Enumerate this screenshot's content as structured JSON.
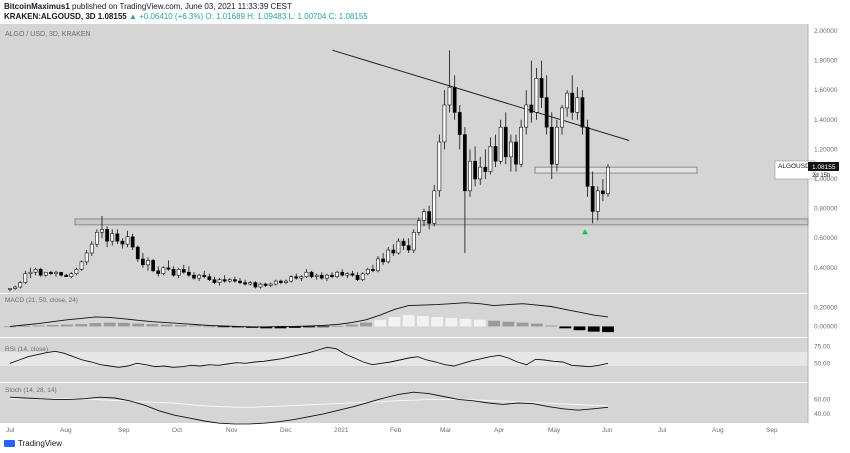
{
  "header": {
    "author": "BitcoinMaximus1",
    "published_text": "published on TradingView.com, June 03, 2021 11:33:39 CEST",
    "symbol_line": "KRAKEN:ALGOUSD, 3D",
    "last": "1.08155",
    "change": "▲ +0.06410 (+6.3%)",
    "ohlc": "O: 1.01689  H: 1.09483  L: 1.00704  C: 1.08155"
  },
  "footer": {
    "brand": "TradingView"
  },
  "colors": {
    "background": "#ffffff",
    "pane": "#d5d5d5",
    "candle_up": "#ffffff",
    "candle_down": "#000000",
    "ohlc_text": "#26a69a",
    "arrow": "#00c853",
    "rsi_band": "#e6e6e6"
  },
  "chart_data": {
    "type": "candlestick",
    "title": "ALGO / USD, 3D, KRAKEN",
    "price_label": {
      "symbol": "ALGOUSD",
      "value": "1.08155",
      "countdown": "2d 15h"
    },
    "x_ticks": [
      "Jul",
      "Aug",
      "Sep",
      "Oct",
      "Nov",
      "Dec",
      "2021",
      "Feb",
      "Mar",
      "Apr",
      "May",
      "Jun",
      "Jul",
      "Aug",
      "Sep"
    ],
    "y_ticks": [
      "2.00000",
      "1.80000",
      "1.60000",
      "1.40000",
      "1.20000",
      "1.00000",
      "0.80000",
      "0.60000",
      "0.40000"
    ],
    "ylim": [
      0.25,
      2.02
    ],
    "candles": [
      [
        0.26,
        0.26,
        0.24,
        0.26
      ],
      [
        0.26,
        0.28,
        0.25,
        0.27
      ],
      [
        0.27,
        0.31,
        0.26,
        0.3
      ],
      [
        0.3,
        0.38,
        0.29,
        0.36
      ],
      [
        0.36,
        0.4,
        0.33,
        0.37
      ],
      [
        0.37,
        0.4,
        0.35,
        0.39
      ],
      [
        0.39,
        0.4,
        0.34,
        0.35
      ],
      [
        0.35,
        0.37,
        0.34,
        0.37
      ],
      [
        0.37,
        0.38,
        0.35,
        0.36
      ],
      [
        0.36,
        0.38,
        0.34,
        0.37
      ],
      [
        0.37,
        0.37,
        0.34,
        0.35
      ],
      [
        0.35,
        0.36,
        0.34,
        0.34
      ],
      [
        0.34,
        0.37,
        0.33,
        0.36
      ],
      [
        0.36,
        0.4,
        0.35,
        0.39
      ],
      [
        0.39,
        0.45,
        0.38,
        0.44
      ],
      [
        0.44,
        0.52,
        0.42,
        0.5
      ],
      [
        0.5,
        0.58,
        0.48,
        0.56
      ],
      [
        0.56,
        0.66,
        0.54,
        0.64
      ],
      [
        0.64,
        0.75,
        0.6,
        0.66
      ],
      [
        0.66,
        0.68,
        0.54,
        0.58
      ],
      [
        0.58,
        0.66,
        0.55,
        0.63
      ],
      [
        0.63,
        0.66,
        0.56,
        0.58
      ],
      [
        0.58,
        0.6,
        0.53,
        0.56
      ],
      [
        0.56,
        0.65,
        0.54,
        0.61
      ],
      [
        0.61,
        0.63,
        0.52,
        0.54
      ],
      [
        0.54,
        0.55,
        0.44,
        0.46
      ],
      [
        0.46,
        0.5,
        0.4,
        0.42
      ],
      [
        0.42,
        0.47,
        0.38,
        0.45
      ],
      [
        0.45,
        0.46,
        0.37,
        0.38
      ],
      [
        0.38,
        0.41,
        0.34,
        0.36
      ],
      [
        0.36,
        0.41,
        0.35,
        0.4
      ],
      [
        0.4,
        0.45,
        0.38,
        0.39
      ],
      [
        0.39,
        0.41,
        0.34,
        0.35
      ],
      [
        0.35,
        0.4,
        0.33,
        0.39
      ],
      [
        0.39,
        0.42,
        0.36,
        0.37
      ],
      [
        0.37,
        0.41,
        0.34,
        0.35
      ],
      [
        0.35,
        0.37,
        0.32,
        0.33
      ],
      [
        0.33,
        0.36,
        0.31,
        0.35
      ],
      [
        0.35,
        0.38,
        0.33,
        0.34
      ],
      [
        0.34,
        0.36,
        0.31,
        0.32
      ],
      [
        0.32,
        0.34,
        0.29,
        0.3
      ],
      [
        0.3,
        0.33,
        0.28,
        0.32
      ],
      [
        0.32,
        0.35,
        0.3,
        0.31
      ],
      [
        0.31,
        0.33,
        0.3,
        0.32
      ],
      [
        0.32,
        0.34,
        0.3,
        0.31
      ],
      [
        0.31,
        0.33,
        0.29,
        0.3
      ],
      [
        0.3,
        0.32,
        0.28,
        0.29
      ],
      [
        0.29,
        0.31,
        0.28,
        0.3
      ],
      [
        0.3,
        0.31,
        0.26,
        0.27
      ],
      [
        0.27,
        0.3,
        0.26,
        0.29
      ],
      [
        0.29,
        0.3,
        0.27,
        0.28
      ],
      [
        0.28,
        0.3,
        0.27,
        0.29
      ],
      [
        0.29,
        0.32,
        0.28,
        0.31
      ],
      [
        0.31,
        0.32,
        0.29,
        0.3
      ],
      [
        0.3,
        0.32,
        0.29,
        0.31
      ],
      [
        0.31,
        0.35,
        0.3,
        0.34
      ],
      [
        0.34,
        0.36,
        0.32,
        0.33
      ],
      [
        0.33,
        0.35,
        0.31,
        0.34
      ],
      [
        0.34,
        0.39,
        0.33,
        0.37
      ],
      [
        0.37,
        0.38,
        0.33,
        0.34
      ],
      [
        0.34,
        0.36,
        0.32,
        0.35
      ],
      [
        0.35,
        0.37,
        0.32,
        0.33
      ],
      [
        0.33,
        0.36,
        0.31,
        0.35
      ],
      [
        0.35,
        0.37,
        0.33,
        0.34
      ],
      [
        0.34,
        0.38,
        0.33,
        0.37
      ],
      [
        0.37,
        0.39,
        0.34,
        0.35
      ],
      [
        0.35,
        0.37,
        0.33,
        0.36
      ],
      [
        0.36,
        0.38,
        0.34,
        0.35
      ],
      [
        0.35,
        0.37,
        0.31,
        0.32
      ],
      [
        0.32,
        0.37,
        0.31,
        0.36
      ],
      [
        0.36,
        0.4,
        0.35,
        0.39
      ],
      [
        0.39,
        0.42,
        0.37,
        0.38
      ],
      [
        0.38,
        0.48,
        0.37,
        0.46
      ],
      [
        0.46,
        0.5,
        0.42,
        0.44
      ],
      [
        0.44,
        0.54,
        0.43,
        0.52
      ],
      [
        0.52,
        0.56,
        0.48,
        0.5
      ],
      [
        0.5,
        0.6,
        0.49,
        0.58
      ],
      [
        0.58,
        0.6,
        0.52,
        0.55
      ],
      [
        0.55,
        0.6,
        0.5,
        0.52
      ],
      [
        0.52,
        0.66,
        0.5,
        0.64
      ],
      [
        0.64,
        0.74,
        0.62,
        0.72
      ],
      [
        0.72,
        0.8,
        0.68,
        0.78
      ],
      [
        0.78,
        0.82,
        0.66,
        0.7
      ],
      [
        0.7,
        0.96,
        0.68,
        0.92
      ],
      [
        0.92,
        1.3,
        0.88,
        1.25
      ],
      [
        1.25,
        1.6,
        1.2,
        1.5
      ],
      [
        1.5,
        1.87,
        1.45,
        1.62
      ],
      [
        1.62,
        1.7,
        1.4,
        1.45
      ],
      [
        1.45,
        1.5,
        1.2,
        1.3
      ],
      [
        1.3,
        1.35,
        0.5,
        0.92
      ],
      [
        0.92,
        1.2,
        0.88,
        1.12
      ],
      [
        1.12,
        1.22,
        0.95,
        1.0
      ],
      [
        1.0,
        1.15,
        0.96,
        1.08
      ],
      [
        1.08,
        1.2,
        1.0,
        1.05
      ],
      [
        1.05,
        1.28,
        1.03,
        1.22
      ],
      [
        1.22,
        1.3,
        1.08,
        1.12
      ],
      [
        1.12,
        1.4,
        1.1,
        1.35
      ],
      [
        1.35,
        1.45,
        1.1,
        1.15
      ],
      [
        1.15,
        1.3,
        1.05,
        1.25
      ],
      [
        1.25,
        1.3,
        1.05,
        1.1
      ],
      [
        1.1,
        1.4,
        1.08,
        1.35
      ],
      [
        1.35,
        1.6,
        1.3,
        1.5
      ],
      [
        1.5,
        1.8,
        1.38,
        1.45
      ],
      [
        1.45,
        1.75,
        1.4,
        1.68
      ],
      [
        1.68,
        1.8,
        1.48,
        1.55
      ],
      [
        1.55,
        1.7,
        1.3,
        1.35
      ],
      [
        1.35,
        1.45,
        1.0,
        1.1
      ],
      [
        1.1,
        1.4,
        1.05,
        1.35
      ],
      [
        1.35,
        1.5,
        1.3,
        1.48
      ],
      [
        1.48,
        1.6,
        1.42,
        1.58
      ],
      [
        1.58,
        1.7,
        1.4,
        1.45
      ],
      [
        1.45,
        1.62,
        1.4,
        1.55
      ],
      [
        1.55,
        1.6,
        1.3,
        1.35
      ],
      [
        1.35,
        1.4,
        0.88,
        0.95
      ],
      [
        0.95,
        1.05,
        0.7,
        0.78
      ],
      [
        0.78,
        0.95,
        0.72,
        0.92
      ],
      [
        0.92,
        1.0,
        0.85,
        0.9
      ],
      [
        0.9,
        1.1,
        0.88,
        1.08
      ]
    ],
    "resistance_line": {
      "start": [
        0.53,
        1.87
      ],
      "end": [
        0.885,
        1.26
      ]
    },
    "support_zone": [
      0.69,
      0.73
    ],
    "resistance_zone": [
      1.04,
      1.08
    ],
    "macd": {
      "label": "MACD (21, 50, close, 24)",
      "y_ticks": [
        "0.20000",
        "0.00000"
      ],
      "ylim": [
        -0.08,
        0.3
      ],
      "line": [
        0.0,
        0.015,
        0.03,
        0.05,
        0.07,
        0.085,
        0.1,
        0.095,
        0.08,
        0.065,
        0.05,
        0.04,
        0.03,
        0.02,
        0.01,
        0.005,
        0.0,
        -0.005,
        -0.005,
        0.0,
        0.0,
        0.005,
        0.01,
        0.02,
        0.04,
        0.07,
        0.12,
        0.18,
        0.22,
        0.225,
        0.23,
        0.24,
        0.25,
        0.24,
        0.22,
        0.23,
        0.24,
        0.225,
        0.21,
        0.18,
        0.15,
        0.12,
        0.1
      ],
      "histogram": [
        0.0,
        0.005,
        0.01,
        0.015,
        0.02,
        0.025,
        0.035,
        0.04,
        0.038,
        0.03,
        0.025,
        0.02,
        0.015,
        0.01,
        0.0,
        -0.005,
        -0.01,
        -0.015,
        -0.02,
        -0.02,
        -0.015,
        -0.01,
        -0.005,
        0.005,
        0.02,
        0.04,
        0.07,
        0.1,
        0.12,
        0.11,
        0.1,
        0.09,
        0.08,
        0.07,
        0.06,
        0.05,
        0.04,
        0.03,
        0.01,
        -0.02,
        -0.04,
        -0.055,
        -0.06
      ]
    },
    "rsi": {
      "label": "RSI (14, close)",
      "y_ticks": [
        "75.00",
        "50.00"
      ],
      "ylim": [
        25,
        85
      ],
      "band": [
        50,
        70
      ],
      "values": [
        50,
        55,
        60,
        63,
        66,
        68,
        65,
        60,
        55,
        52,
        48,
        46,
        44,
        46,
        50,
        48,
        45,
        46,
        44,
        45,
        47,
        46,
        48,
        47,
        49,
        51,
        50,
        52,
        53,
        55,
        57,
        60,
        63,
        66,
        70,
        74,
        72,
        64,
        58,
        52,
        48,
        50,
        52,
        55,
        58,
        60,
        55,
        52,
        48,
        46,
        50,
        54,
        57,
        60,
        62,
        58,
        52,
        48,
        56,
        55,
        53,
        52,
        47,
        46,
        45,
        47,
        50
      ]
    },
    "stoch": {
      "label": "Stoch (14, 28, 14)",
      "y_ticks": [
        "60.00",
        "40.00"
      ],
      "ylim": [
        30,
        80
      ],
      "k": [
        63,
        62,
        61,
        60,
        60,
        61,
        63,
        62,
        58,
        52,
        44,
        38,
        34,
        30,
        27,
        26,
        26,
        27,
        29,
        32,
        36,
        40,
        45,
        50,
        56,
        62,
        67,
        70,
        68,
        64,
        60,
        58,
        55,
        53,
        55,
        54,
        50,
        47,
        45,
        47,
        49
      ],
      "d": [
        61,
        61,
        61,
        61,
        61,
        60,
        59,
        58,
        57,
        56,
        55,
        53,
        51,
        50,
        49,
        49,
        50,
        51,
        52,
        53,
        54,
        55,
        56,
        57,
        58,
        59,
        60,
        60,
        60,
        59,
        58,
        57,
        56,
        55,
        54,
        53,
        52,
        51
      ]
    }
  }
}
